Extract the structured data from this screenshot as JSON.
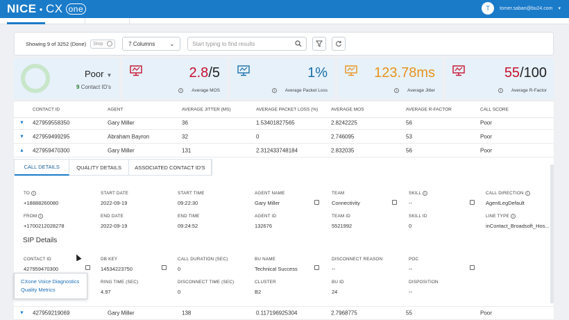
{
  "app": {
    "logo_nice": "NICE",
    "logo_cx": "CX",
    "logo_one": "one"
  },
  "user": {
    "initial": "T",
    "email": "tomer.saban@bu24.com"
  },
  "toolbar": {
    "showing": "Showing 9 of 3252 (Done)",
    "stop_label": "Stop",
    "columns_selected": "7 Columns",
    "search_placeholder": "Start typing to find results"
  },
  "score": {
    "label": "Poor",
    "count": "9",
    "count_suffix": "Contact ID's"
  },
  "metrics": [
    {
      "value": "2.8",
      "suffix": "/5",
      "label": "Average MOS",
      "color": "#c8102e"
    },
    {
      "value": "1%",
      "suffix": "",
      "label": "Average Packet Loss",
      "color": "#1a6fa8"
    },
    {
      "value": "123.78ms",
      "suffix": "",
      "label": "Average Jitter",
      "color": "#e8931d"
    },
    {
      "value": "55",
      "suffix": "/100",
      "label": "Average R-Factor",
      "color": "#c8102e"
    }
  ],
  "table": {
    "headers": [
      "CONTACT ID",
      "AGENT",
      "AVERAGE JITTER (MS)",
      "AVERAGE PACKET LOSS (%)",
      "AVERAGE MOS",
      "AVERAGE R-FACTOR",
      "CALL SCORE"
    ],
    "rows": [
      [
        "427959558350",
        "Gary Miller",
        "36",
        "1.53401827565",
        "2.8242225",
        "56",
        "Poor"
      ],
      [
        "427959499295",
        "Abraham Bayron",
        "32",
        "0",
        "2.746095",
        "53",
        "Poor"
      ],
      [
        "427959470300",
        "Gary Miller",
        "131",
        "2.312433748184",
        "2.832035",
        "56",
        "Poor"
      ]
    ],
    "last_row": [
      "427959219069",
      "Gary Miller",
      "138",
      "0.117196925304",
      "2.7968775",
      "55",
      "Poor"
    ]
  },
  "detail_tabs": [
    "CALL DETAILS",
    "QUALITY DETAILS",
    "ASSOCIATED CONTACT ID'S"
  ],
  "call_details": {
    "to_label": "TO",
    "to": "+18888260080",
    "start_date_label": "START DATE",
    "start_date": "2022-09-19",
    "start_time_label": "START TIME",
    "start_time": "09:22:30",
    "agent_name_label": "AGENT NAME",
    "agent_name": "Gary Miller",
    "team_label": "TEAM",
    "team": "Connectivity",
    "skill_label": "SKILL",
    "skill": "--",
    "direction_label": "CALL DIRECTION",
    "direction": "AgentLegDefault",
    "from_label": "FROM",
    "from": "+1700212028278",
    "end_date_label": "END DATE",
    "end_date": "2022-09-19",
    "end_time_label": "END TIME",
    "end_time": "09:24:52",
    "agent_id_label": "AGENT ID",
    "agent_id": "132676",
    "team_id_label": "TEAM ID",
    "team_id": "5521992",
    "skill_id_label": "SKILL ID",
    "skill_id": "0",
    "line_type_label": "LINE TYPE",
    "line_type": "inContact_Broadsoft_Hos..."
  },
  "sip": {
    "title": "SIP Details",
    "contact_id_label": "CONTACT ID",
    "contact_id": "427959470300",
    "db_key_label": "DB KEY",
    "db_key": "14534223750",
    "duration_label": "CALL DURATION (SEC)",
    "duration": "0",
    "bu_name_label": "BU NAME",
    "bu_name": "Technical Success",
    "disconnect_reason_label": "DISCONNECT REASON",
    "disconnect_reason": "--",
    "poc_label": "POC",
    "poc": "--",
    "ring_time_label": "RING TIME (SEC)",
    "ring_time": "4.97",
    "disconnect_time_label": "DISCONNECT TIME (SEC)",
    "disconnect_time": "0",
    "cluster_label": "CLUSTER",
    "cluster": "B2",
    "bu_id_label": "BU ID",
    "bu_id": "24",
    "disposition_label": "DISPOSITION",
    "disposition": "--"
  },
  "popup": {
    "item1": "CXone Voice Diagnostics",
    "item2": "Quality Metrics"
  }
}
